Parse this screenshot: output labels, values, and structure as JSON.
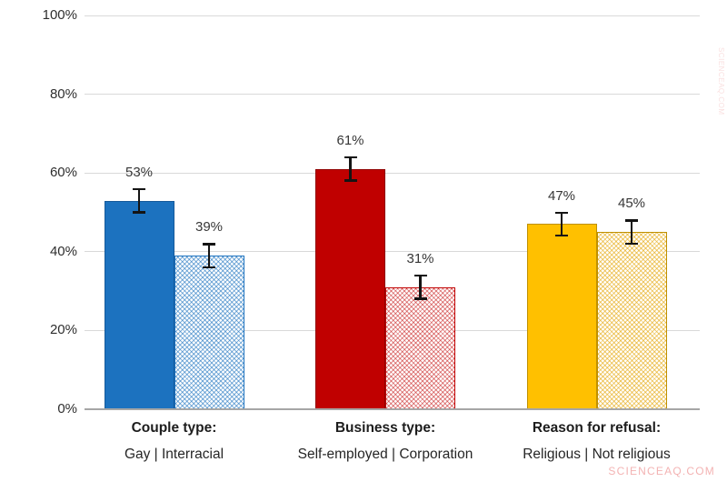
{
  "chart_data": {
    "type": "bar",
    "title": "",
    "xlabel": "",
    "ylabel": "",
    "ylim": [
      0,
      100
    ],
    "yticks": [
      0,
      20,
      40,
      60,
      80,
      100
    ],
    "ytick_labels": [
      "0%",
      "20%",
      "40%",
      "60%",
      "80%",
      "100%"
    ],
    "grid": true,
    "legend": "none",
    "groups": [
      {
        "title": "Couple type:",
        "subtitle": "Gay | Interracial",
        "bars": [
          {
            "label": "Gay",
            "value": 53,
            "display": "53%",
            "error_pct": 3,
            "fill": "solid",
            "color": "#1c72bf",
            "border": "#15599a"
          },
          {
            "label": "Interracial",
            "value": 39,
            "display": "39%",
            "error_pct": 3,
            "fill": "pattern",
            "color": "#1c72bf",
            "border": "#1c72bf",
            "pattern_line": "rgba(28,114,191,0.55)"
          }
        ]
      },
      {
        "title": "Business type:",
        "subtitle": "Self-employed | Corporation",
        "bars": [
          {
            "label": "Self-employed",
            "value": 61,
            "display": "61%",
            "error_pct": 3,
            "fill": "solid",
            "color": "#c00000",
            "border": "#8f0000"
          },
          {
            "label": "Corporation",
            "value": 31,
            "display": "31%",
            "error_pct": 3,
            "fill": "pattern",
            "color": "#c00000",
            "border": "#c00000",
            "pattern_line": "rgba(192,0,0,0.45)"
          }
        ]
      },
      {
        "title": "Reason for refusal:",
        "subtitle": "Religious | Not religious",
        "bars": [
          {
            "label": "Religious",
            "value": 47,
            "display": "47%",
            "error_pct": 3,
            "fill": "solid",
            "color": "#ffc000",
            "border": "#bf9000"
          },
          {
            "label": "Not religious",
            "value": 45,
            "display": "45%",
            "error_pct": 3,
            "fill": "pattern",
            "color": "#bf9000",
            "border": "#bf9000",
            "pattern_line": "rgba(230,170,20,0.6)"
          }
        ]
      }
    ]
  },
  "watermark": {
    "text": "SCIENCEAQ.COM",
    "color": "#f2a6a6"
  }
}
